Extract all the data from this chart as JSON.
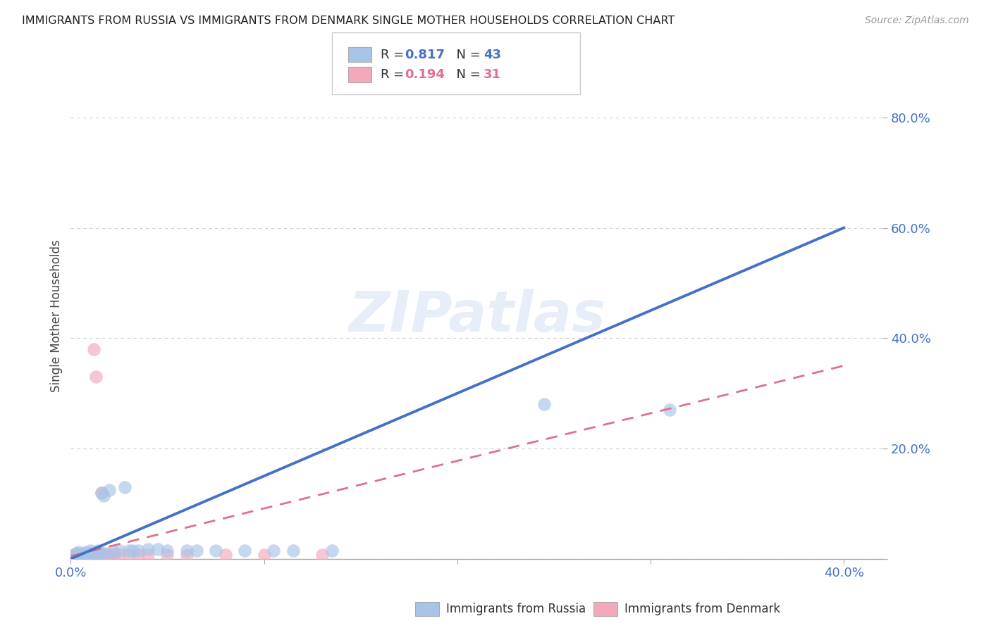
{
  "title": "IMMIGRANTS FROM RUSSIA VS IMMIGRANTS FROM DENMARK SINGLE MOTHER HOUSEHOLDS CORRELATION CHART",
  "source": "Source: ZipAtlas.com",
  "ylabel": "Single Mother Households",
  "xlim": [
    0.0,
    0.42
  ],
  "ylim": [
    0.0,
    0.88
  ],
  "russia_color": "#a8c4e8",
  "russia_line_color": "#4472c4",
  "denmark_color": "#f4a8bc",
  "denmark_line_color": "#e07090",
  "russia_R": 0.817,
  "russia_N": 43,
  "denmark_R": 0.194,
  "denmark_N": 31,
  "russia_scatter": [
    [
      0.001,
      0.005
    ],
    [
      0.002,
      0.008
    ],
    [
      0.003,
      0.004
    ],
    [
      0.003,
      0.01
    ],
    [
      0.004,
      0.006
    ],
    [
      0.004,
      0.012
    ],
    [
      0.005,
      0.005
    ],
    [
      0.005,
      0.008
    ],
    [
      0.006,
      0.006
    ],
    [
      0.006,
      0.01
    ],
    [
      0.007,
      0.005
    ],
    [
      0.007,
      0.008
    ],
    [
      0.008,
      0.007
    ],
    [
      0.008,
      0.012
    ],
    [
      0.009,
      0.008
    ],
    [
      0.01,
      0.01
    ],
    [
      0.01,
      0.015
    ],
    [
      0.012,
      0.012
    ],
    [
      0.013,
      0.01
    ],
    [
      0.014,
      0.015
    ],
    [
      0.015,
      0.012
    ],
    [
      0.016,
      0.12
    ],
    [
      0.017,
      0.115
    ],
    [
      0.018,
      0.01
    ],
    [
      0.02,
      0.125
    ],
    [
      0.022,
      0.012
    ],
    [
      0.025,
      0.015
    ],
    [
      0.028,
      0.13
    ],
    [
      0.03,
      0.015
    ],
    [
      0.032,
      0.015
    ],
    [
      0.035,
      0.015
    ],
    [
      0.04,
      0.018
    ],
    [
      0.045,
      0.018
    ],
    [
      0.05,
      0.015
    ],
    [
      0.06,
      0.015
    ],
    [
      0.065,
      0.015
    ],
    [
      0.075,
      0.015
    ],
    [
      0.09,
      0.015
    ],
    [
      0.105,
      0.015
    ],
    [
      0.115,
      0.015
    ],
    [
      0.135,
      0.015
    ],
    [
      0.245,
      0.28
    ],
    [
      0.31,
      0.27
    ]
  ],
  "denmark_scatter": [
    [
      0.001,
      0.005
    ],
    [
      0.002,
      0.008
    ],
    [
      0.003,
      0.005
    ],
    [
      0.003,
      0.007
    ],
    [
      0.004,
      0.005
    ],
    [
      0.004,
      0.007
    ],
    [
      0.005,
      0.005
    ],
    [
      0.005,
      0.008
    ],
    [
      0.006,
      0.006
    ],
    [
      0.006,
      0.008
    ],
    [
      0.007,
      0.005
    ],
    [
      0.008,
      0.006
    ],
    [
      0.009,
      0.007
    ],
    [
      0.01,
      0.007
    ],
    [
      0.011,
      0.006
    ],
    [
      0.012,
      0.38
    ],
    [
      0.013,
      0.33
    ],
    [
      0.015,
      0.006
    ],
    [
      0.016,
      0.12
    ],
    [
      0.018,
      0.007
    ],
    [
      0.02,
      0.008
    ],
    [
      0.022,
      0.007
    ],
    [
      0.025,
      0.007
    ],
    [
      0.03,
      0.007
    ],
    [
      0.035,
      0.007
    ],
    [
      0.04,
      0.007
    ],
    [
      0.05,
      0.007
    ],
    [
      0.06,
      0.007
    ],
    [
      0.08,
      0.007
    ],
    [
      0.1,
      0.007
    ],
    [
      0.13,
      0.007
    ]
  ],
  "russia_line": [
    [
      0.0,
      0.0
    ],
    [
      0.4,
      0.6
    ]
  ],
  "denmark_line": [
    [
      0.0,
      0.005
    ],
    [
      0.4,
      0.35
    ]
  ],
  "watermark": "ZIPatlas",
  "background_color": "#ffffff",
  "grid_color": "#d0d0d0"
}
